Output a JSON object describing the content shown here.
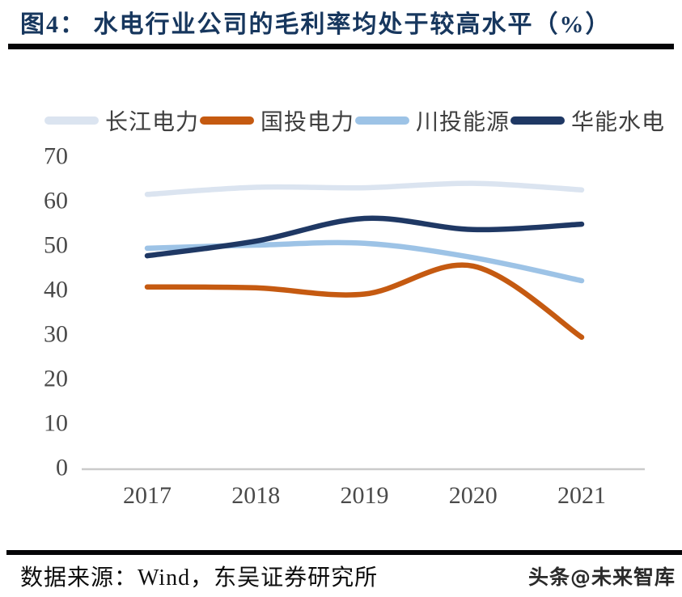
{
  "header": {
    "title": "图4：  水电行业公司的毛利率均处于较高水平（%）"
  },
  "chart_data": {
    "type": "line",
    "title": "水电行业公司的毛利率均处于较高水平（%）",
    "x": [
      "2017",
      "2018",
      "2019",
      "2020",
      "2021"
    ],
    "series": [
      {
        "name": "长江电力",
        "color": "#dbe4f0",
        "values": [
          61.4,
          63.0,
          62.9,
          63.9,
          62.4
        ]
      },
      {
        "name": "国投电力",
        "color": "#c55a11",
        "values": [
          40.6,
          40.4,
          39.0,
          45.3,
          29.3
        ]
      },
      {
        "name": "川投能源",
        "color": "#9dc3e6",
        "values": [
          49.3,
          50.0,
          50.4,
          47.2,
          42.0
        ]
      },
      {
        "name": "华能水电",
        "color": "#1f3864",
        "values": [
          47.6,
          50.9,
          56.0,
          53.5,
          54.7
        ]
      }
    ],
    "yticks": [
      0,
      10,
      20,
      30,
      40,
      50,
      60,
      70
    ],
    "ylim": [
      0,
      70
    ],
    "xlabel": "",
    "ylabel": "",
    "grid": false,
    "legend_position": "top",
    "axis_text_color": "#4a4a4a",
    "baseline_color": "#cbcbcb"
  },
  "footer": {
    "source": "数据来源：Wind，东吴证券研究所",
    "watermark": "头条@未来智库"
  }
}
